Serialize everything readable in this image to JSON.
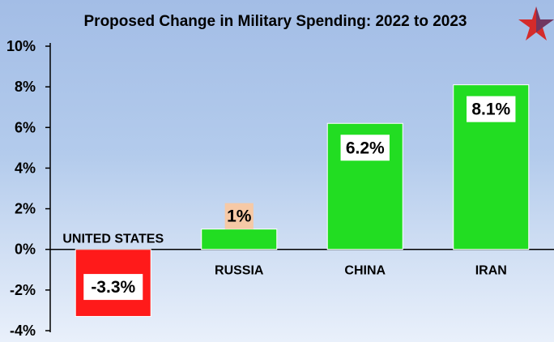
{
  "chart_data": {
    "type": "bar",
    "title": "Proposed Change in Military Spending: 2022 to 2023",
    "categories": [
      "UNITED STATES",
      "RUSSIA",
      "CHINA",
      "IRAN"
    ],
    "values": [
      -3.3,
      1,
      6.2,
      8.1
    ],
    "data_labels": [
      "-3.3%",
      "1%",
      "6.2%",
      "8.1%"
    ],
    "bar_colors": [
      "#ff1a1a",
      "#22dd22",
      "#22dd22",
      "#22dd22"
    ],
    "label_backgrounds": [
      "#ffffff",
      "#f6c9a6",
      "#ffffff",
      "#ffffff"
    ],
    "ylim": [
      -4,
      10
    ],
    "yticks": [
      -4,
      -2,
      0,
      2,
      4,
      6,
      8,
      10
    ],
    "ytick_labels": [
      "-4%",
      "-2%",
      "0%",
      "2%",
      "4%",
      "6%",
      "8%",
      "10%"
    ],
    "xlabel": "",
    "ylabel": "",
    "grid": false,
    "legend": "none"
  },
  "logo": {
    "icon": "star-icon",
    "colors": [
      "#d42b2b",
      "#1f3f8c"
    ]
  }
}
